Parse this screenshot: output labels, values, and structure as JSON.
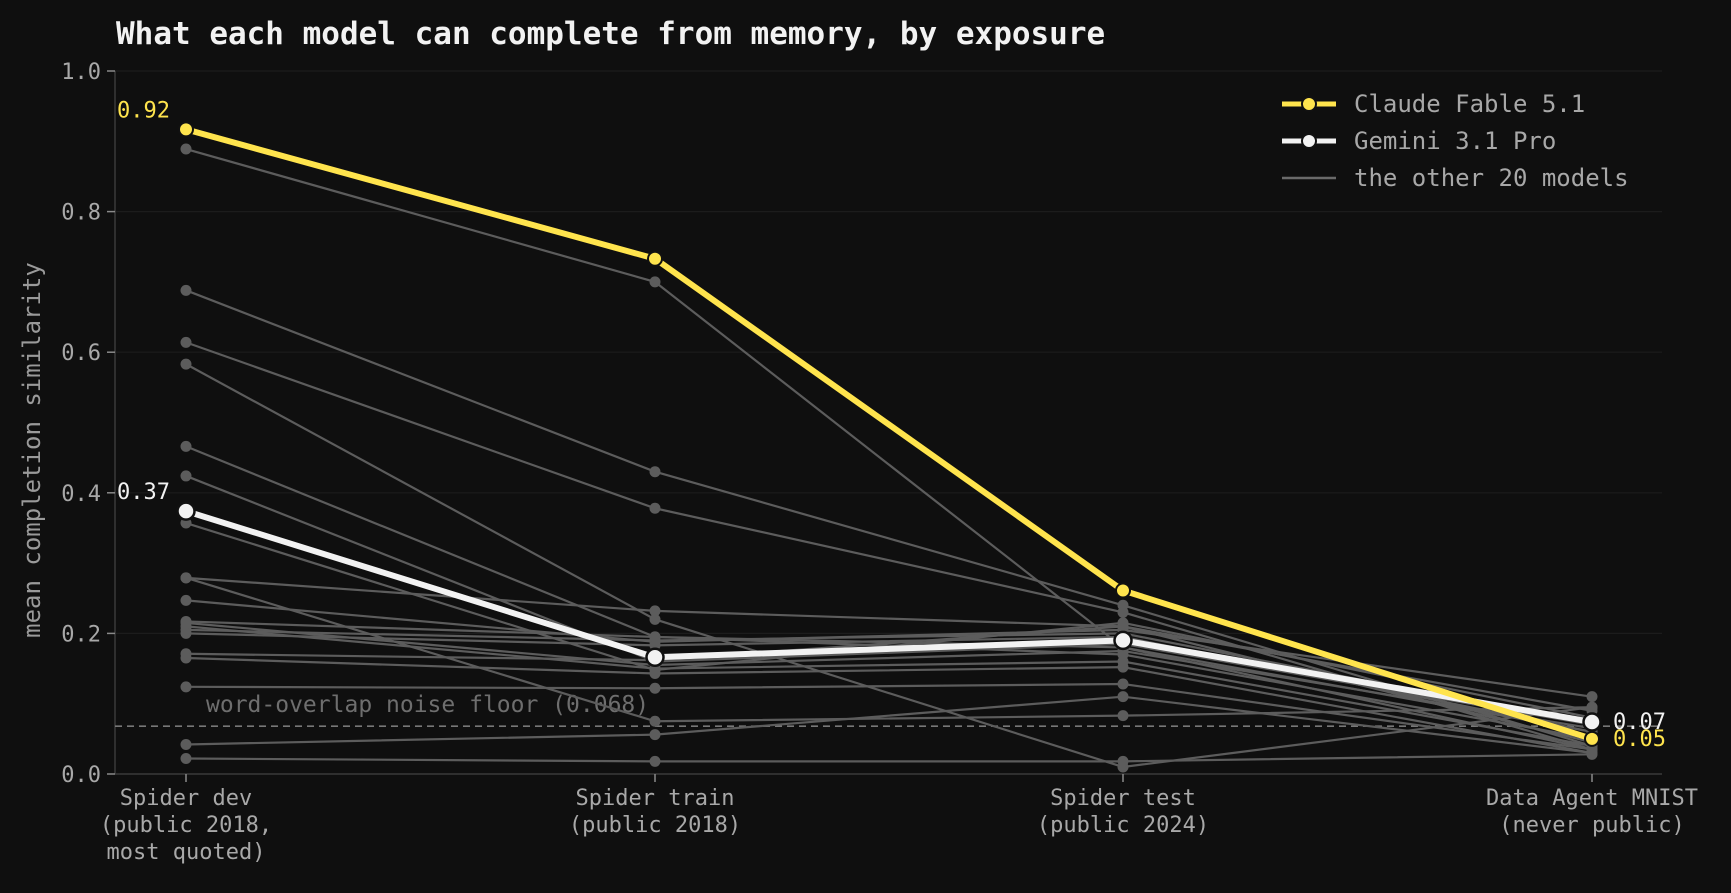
{
  "chart_data": {
    "type": "line",
    "title": "What each model can complete from memory, by exposure",
    "xlabel": "",
    "ylabel": "mean completion similarity",
    "ylim": [
      0,
      1.0
    ],
    "yticks": [
      "0.0",
      "0.2",
      "0.4",
      "0.6",
      "0.8",
      "1.0"
    ],
    "categories": [
      [
        "Spider dev",
        "(public 2018,",
        "most quoted)"
      ],
      [
        "Spider train",
        "(public 2018)"
      ],
      [
        "Spider test",
        "(public 2024)"
      ],
      [
        "Data Agent MNIST",
        "(never public)"
      ]
    ],
    "grid": true,
    "legend": {
      "placement": "top-right",
      "entries": [
        "Claude Fable 5.1",
        "Gemini 3.1 Pro",
        "the other 20 models"
      ]
    },
    "noise_floor": {
      "value": 0.068,
      "label": "word-overlap noise floor (0.068)"
    },
    "highlight_series": [
      {
        "name": "Claude Fable 5.1",
        "color": "#ffe44d",
        "values": [
          0.917,
          0.733,
          0.261,
          0.05
        ],
        "labels": {
          "first": "0.92",
          "last": "0.05"
        }
      },
      {
        "name": "Gemini 3.1 Pro",
        "color": "#f2f2f2",
        "values": [
          0.374,
          0.166,
          0.19,
          0.074
        ],
        "labels": {
          "first": "0.37",
          "last": "0.07"
        }
      }
    ],
    "other_series_color": "#5c5c5c",
    "other_series": [
      {
        "values": [
          0.889,
          0.7,
          0.18,
          0.035
        ]
      },
      {
        "values": [
          0.688,
          0.43,
          0.24,
          0.04
        ]
      },
      {
        "values": [
          0.614,
          0.378,
          0.23,
          0.035
        ]
      },
      {
        "values": [
          0.583,
          0.22,
          0.01,
          0.095
        ]
      },
      {
        "values": [
          0.466,
          0.195,
          0.17,
          0.05
        ]
      },
      {
        "values": [
          0.424,
          0.16,
          0.185,
          0.07
        ]
      },
      {
        "values": [
          0.357,
          0.148,
          0.215,
          0.08
        ]
      },
      {
        "values": [
          0.279,
          0.232,
          0.21,
          0.09
        ]
      },
      {
        "values": [
          0.279,
          0.075,
          0.083,
          0.095
        ]
      },
      {
        "values": [
          0.247,
          0.188,
          0.205,
          0.11
        ]
      },
      {
        "values": [
          0.217,
          0.195,
          0.18,
          0.06
        ]
      },
      {
        "values": [
          0.21,
          0.15,
          0.16,
          0.04
        ]
      },
      {
        "values": [
          0.205,
          0.19,
          0.2,
          0.07
        ]
      },
      {
        "values": [
          0.2,
          0.183,
          0.195,
          0.06
        ]
      },
      {
        "values": [
          0.171,
          0.162,
          0.21,
          0.045
        ]
      },
      {
        "values": [
          0.165,
          0.143,
          0.152,
          0.03
        ]
      },
      {
        "values": [
          0.124,
          0.122,
          0.128,
          0.035
        ]
      },
      {
        "values": [
          0.042,
          0.056,
          0.11,
          0.03
        ]
      },
      {
        "values": [
          0.022,
          0.018,
          0.018,
          0.028
        ]
      },
      {
        "values": [
          0.215,
          0.155,
          0.175,
          0.065
        ]
      }
    ]
  }
}
